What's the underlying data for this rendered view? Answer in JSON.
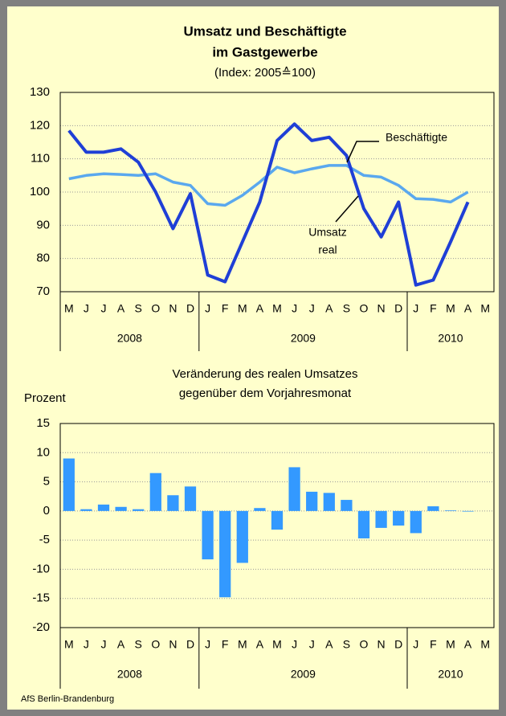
{
  "chart_data": [
    {
      "type": "line",
      "title": [
        "Umsatz und Beschäftigte",
        "im Gastgewerbe"
      ],
      "subtitle": "(Index: 2005≙100)",
      "categories": [
        "M",
        "J",
        "J",
        "A",
        "S",
        "O",
        "N",
        "D",
        "J",
        "F",
        "M",
        "A",
        "M",
        "J",
        "J",
        "A",
        "S",
        "O",
        "N",
        "D",
        "J",
        "F",
        "M",
        "A",
        "M"
      ],
      "groups": [
        {
          "label": "2008",
          "count": 8
        },
        {
          "label": "2009",
          "count": 12
        },
        {
          "label": "2010",
          "count": 5
        }
      ],
      "ylim": [
        70,
        130
      ],
      "yticks": [
        70,
        80,
        90,
        100,
        110,
        120,
        130
      ],
      "grid": true,
      "series": [
        {
          "name": "Umsatz real",
          "color": "#1f3fd6",
          "values": [
            118.5,
            112,
            112,
            113,
            109,
            100,
            89,
            99.5,
            75,
            73,
            85,
            97,
            115.5,
            120.5,
            115.5,
            116.5,
            111,
            95,
            86.5,
            97,
            72,
            73.5,
            85,
            97,
            null
          ]
        },
        {
          "name": "Beschäftigte",
          "color": "#5aa8ee",
          "values": [
            104,
            105,
            105.5,
            105.3,
            105,
            105.5,
            103,
            102,
            96.5,
            96,
            99,
            103,
            107.5,
            105.8,
            107,
            108,
            108,
            105,
            104.5,
            102,
            98,
            97.8,
            97,
            100,
            null
          ]
        }
      ],
      "annotations": [
        {
          "text": [
            "Beschäftigte"
          ]
        },
        {
          "text": [
            "Umsatz",
            "real"
          ]
        }
      ]
    },
    {
      "type": "bar",
      "title": [
        "Veränderung des realen Umsatzes",
        "gegenüber dem Vorjahresmonat"
      ],
      "y_label": "Prozent",
      "categories": [
        "M",
        "J",
        "J",
        "A",
        "S",
        "O",
        "N",
        "D",
        "J",
        "F",
        "M",
        "A",
        "M",
        "J",
        "J",
        "A",
        "S",
        "O",
        "N",
        "D",
        "J",
        "F",
        "M",
        "A",
        "M"
      ],
      "groups": [
        {
          "label": "2008",
          "count": 8
        },
        {
          "label": "2009",
          "count": 12
        },
        {
          "label": "2010",
          "count": 5
        }
      ],
      "ylim": [
        -20,
        15
      ],
      "yticks": [
        -20,
        -15,
        -10,
        -5,
        0,
        5,
        10,
        15
      ],
      "grid": true,
      "color": "#3399ff",
      "values": [
        9,
        0.3,
        1.1,
        0.7,
        0.3,
        6.5,
        2.7,
        4.2,
        -8.3,
        -14.8,
        -8.9,
        0.5,
        -3.2,
        7.5,
        3.3,
        3.1,
        1.9,
        -4.7,
        -2.9,
        -2.5,
        -3.8,
        0.8,
        0.1,
        -0.1,
        null
      ]
    }
  ],
  "footer": "AfS Berlin-Brandenburg"
}
